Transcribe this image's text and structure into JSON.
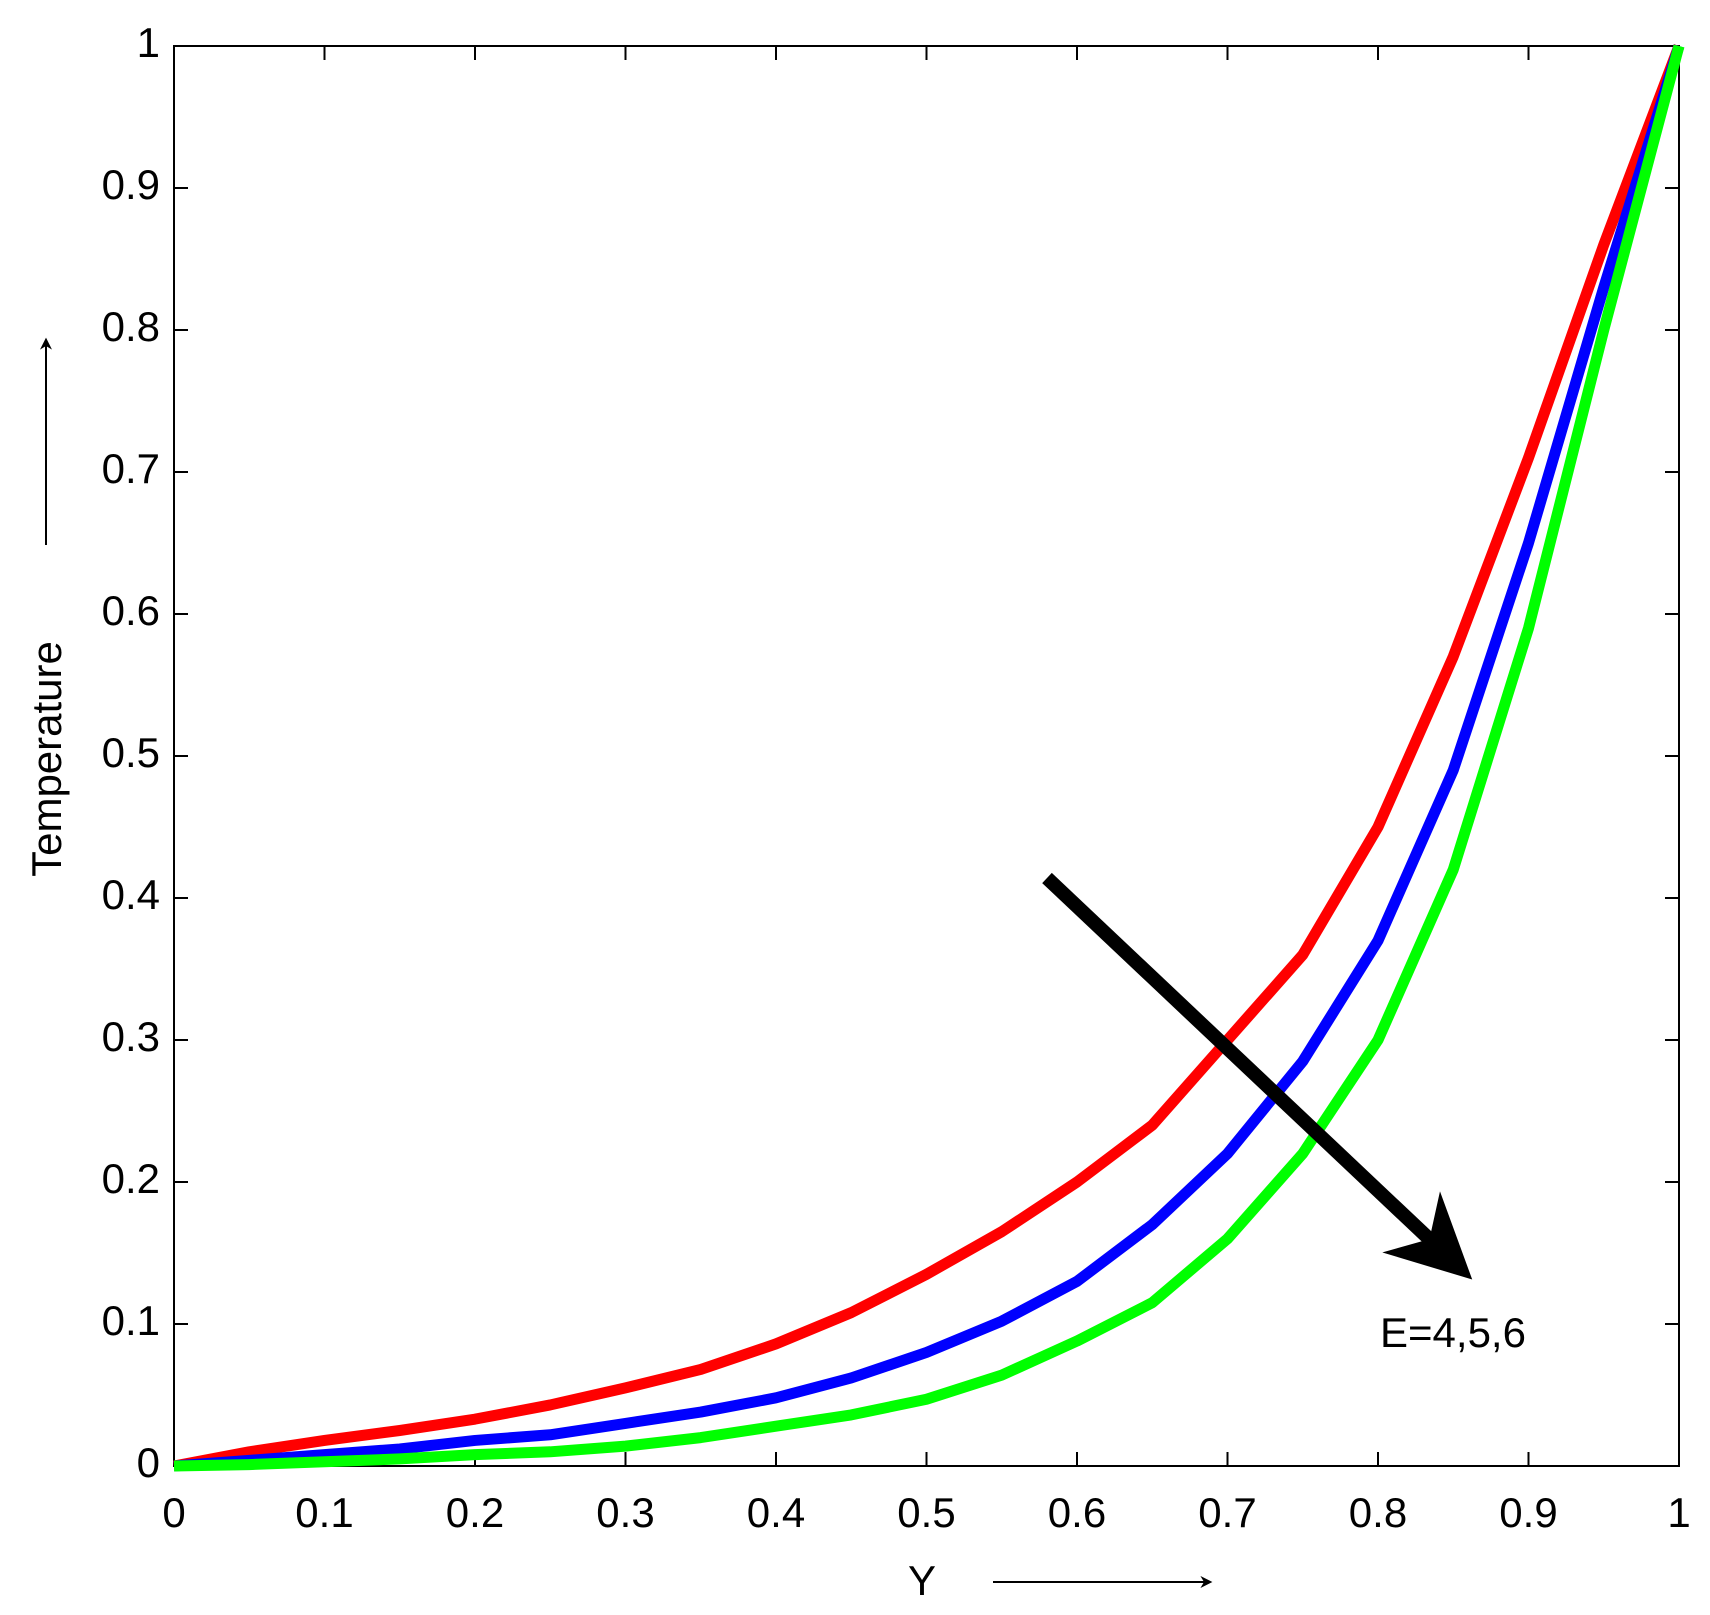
{
  "chart_data": {
    "type": "line",
    "xlabel": "Y",
    "ylabel": "Temperature",
    "annotation": "E=4,5,6",
    "x": [
      0,
      0.05,
      0.1,
      0.15,
      0.2,
      0.25,
      0.3,
      0.35,
      0.4,
      0.45,
      0.5,
      0.55,
      0.6,
      0.65,
      0.7,
      0.75,
      0.8,
      0.85,
      0.9,
      0.95,
      1
    ],
    "series": [
      {
        "color": "#ff0000",
        "values": [
          0,
          0.01,
          0.018,
          0.025,
          0.033,
          0.043,
          0.055,
          0.068,
          0.086,
          0.108,
          0.135,
          0.165,
          0.2,
          0.24,
          0.3,
          0.36,
          0.45,
          0.57,
          0.71,
          0.86,
          1
        ]
      },
      {
        "color": "#0000ff",
        "values": [
          0,
          0.004,
          0.008,
          0.012,
          0.018,
          0.022,
          0.03,
          0.038,
          0.048,
          0.062,
          0.08,
          0.102,
          0.13,
          0.17,
          0.22,
          0.285,
          0.37,
          0.49,
          0.65,
          0.83,
          1
        ]
      },
      {
        "color": "#00ff00",
        "values": [
          0,
          0.001,
          0.003,
          0.005,
          0.008,
          0.01,
          0.014,
          0.02,
          0.028,
          0.036,
          0.047,
          0.064,
          0.088,
          0.115,
          0.16,
          0.22,
          0.3,
          0.42,
          0.59,
          0.8,
          1
        ]
      }
    ],
    "xlim": [
      0,
      1
    ],
    "ylim": [
      0,
      1
    ],
    "xticks": [
      0,
      0.1,
      0.2,
      0.3,
      0.4,
      0.5,
      0.6,
      0.7,
      0.8,
      0.9,
      1
    ],
    "yticks": [
      0,
      0.1,
      0.2,
      0.3,
      0.4,
      0.5,
      0.6,
      0.7,
      0.8,
      0.9,
      1
    ]
  }
}
